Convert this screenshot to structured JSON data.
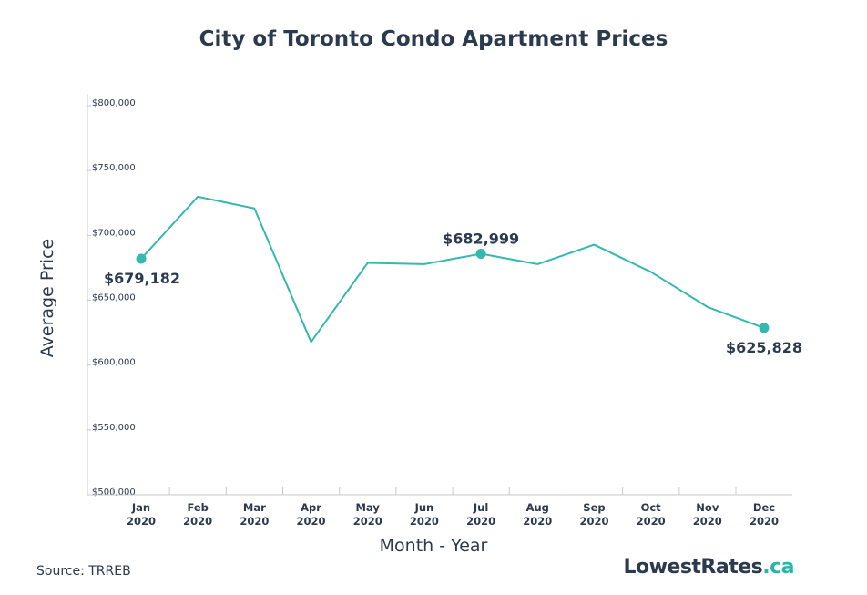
{
  "colors": {
    "line": "#35b8ae",
    "text": "#2b3a4f",
    "axis": "#c8c8c8",
    "accent": "#2bb4a8"
  },
  "footer": {
    "source": "Source: TRREB",
    "logo_main": "LowestRates",
    "logo_tld": ".ca"
  },
  "chart_data": {
    "type": "line",
    "title": "City of Toronto Condo Apartment Prices",
    "xlabel": "Month - Year",
    "ylabel": "Average Price",
    "categories": [
      [
        "Jan",
        "2020"
      ],
      [
        "Feb",
        "2020"
      ],
      [
        "Mar",
        "2020"
      ],
      [
        "Apr",
        "2020"
      ],
      [
        "May",
        "2020"
      ],
      [
        "Jun",
        "2020"
      ],
      [
        "Jul",
        "2020"
      ],
      [
        "Aug",
        "2020"
      ],
      [
        "Sep",
        "2020"
      ],
      [
        "Oct",
        "2020"
      ],
      [
        "Nov",
        "2020"
      ],
      [
        "Dec",
        "2020"
      ]
    ],
    "values": [
      679182,
      727000,
      718000,
      615000,
      676000,
      675000,
      682999,
      675000,
      690000,
      669000,
      642000,
      625828
    ],
    "ylim": [
      500000,
      800000
    ],
    "yticks": [
      {
        "value": 800000,
        "label": "$800,000"
      },
      {
        "value": 750000,
        "label": "$750,000"
      },
      {
        "value": 700000,
        "label": "$700,000"
      },
      {
        "value": 650000,
        "label": "$650,000"
      },
      {
        "value": 600000,
        "label": "$600,000"
      },
      {
        "value": 550000,
        "label": "$550,000"
      },
      {
        "value": 500000,
        "label": "$500,000"
      }
    ],
    "annotations": [
      {
        "index": 0,
        "label": "$679,182",
        "position": "below"
      },
      {
        "index": 6,
        "label": "$682,999",
        "position": "above"
      },
      {
        "index": 11,
        "label": "$625,828",
        "position": "below"
      }
    ],
    "grid": false,
    "legend": "none"
  }
}
